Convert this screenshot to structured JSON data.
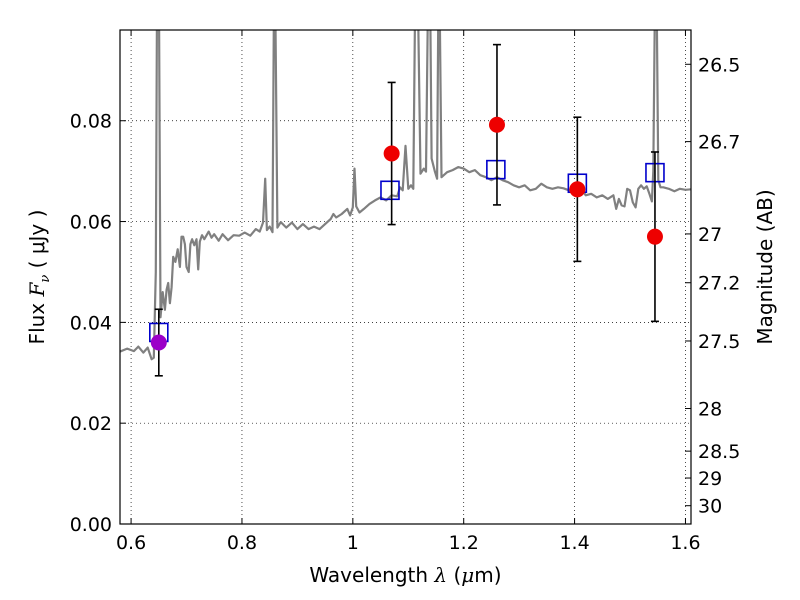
{
  "chart_data": {
    "type": "scatter",
    "xlabel": {
      "prefix": "Wavelength ",
      "symbol": "λ",
      "unit_open": " (",
      "unit_mu": "μ",
      "unit_rest": "m)"
    },
    "ylabel": {
      "prefix": "Flux ",
      "symbol": "F",
      "sub": "ν",
      "unit": " ( μJy )"
    },
    "y2label": "Magnitude (AB)",
    "xlim": [
      0.58,
      1.61
    ],
    "ylim": [
      0.0,
      0.098
    ],
    "grid": true,
    "x_ticks": [
      {
        "value": 0.6,
        "label": "0.6"
      },
      {
        "value": 0.8,
        "label": "0.8"
      },
      {
        "value": 1.0,
        "label": "1"
      },
      {
        "value": 1.2,
        "label": "1.2"
      },
      {
        "value": 1.4,
        "label": "1.4"
      },
      {
        "value": 1.6,
        "label": "1.6"
      }
    ],
    "y_ticks": [
      {
        "value": 0.0,
        "label": "0.00"
      },
      {
        "value": 0.02,
        "label": "0.02"
      },
      {
        "value": 0.04,
        "label": "0.04"
      },
      {
        "value": 0.06,
        "label": "0.06"
      },
      {
        "value": 0.08,
        "label": "0.08"
      }
    ],
    "mag_ticks": [
      {
        "mag": 26.5,
        "label": "26.5"
      },
      {
        "mag": 26.7,
        "label": "26.7"
      },
      {
        "mag": 27.0,
        "label": "27"
      },
      {
        "mag": 27.2,
        "label": "27.2"
      },
      {
        "mag": 27.5,
        "label": "27.5"
      },
      {
        "mag": 28.0,
        "label": "28"
      },
      {
        "mag": 28.5,
        "label": "28.5"
      },
      {
        "mag": 29.0,
        "label": "29"
      },
      {
        "mag": 30.0,
        "label": "30"
      }
    ],
    "model_spectrum": {
      "color": "#808080",
      "points": [
        [
          0.58,
          0.0342
        ],
        [
          0.593,
          0.0348
        ],
        [
          0.605,
          0.0343
        ],
        [
          0.613,
          0.0352
        ],
        [
          0.622,
          0.034
        ],
        [
          0.63,
          0.035
        ],
        [
          0.637,
          0.0327
        ],
        [
          0.641,
          0.033
        ],
        [
          0.6445,
          0.05
        ],
        [
          0.6465,
          0.099
        ],
        [
          0.6505,
          0.099
        ],
        [
          0.653,
          0.041
        ],
        [
          0.657,
          0.046
        ],
        [
          0.661,
          0.0425
        ],
        [
          0.664,
          0.0465
        ],
        [
          0.667,
          0.0478
        ],
        [
          0.67,
          0.0438
        ],
        [
          0.673,
          0.047
        ],
        [
          0.676,
          0.053
        ],
        [
          0.68,
          0.052
        ],
        [
          0.684,
          0.0545
        ],
        [
          0.688,
          0.051
        ],
        [
          0.691,
          0.057
        ],
        [
          0.694,
          0.057
        ],
        [
          0.697,
          0.0555
        ],
        [
          0.7,
          0.051
        ],
        [
          0.704,
          0.05
        ],
        [
          0.707,
          0.0555
        ],
        [
          0.71,
          0.0565
        ],
        [
          0.714,
          0.0553
        ],
        [
          0.718,
          0.0565
        ],
        [
          0.721,
          0.0505
        ],
        [
          0.724,
          0.056
        ],
        [
          0.728,
          0.0573
        ],
        [
          0.732,
          0.0565
        ],
        [
          0.74,
          0.058
        ],
        [
          0.745,
          0.0568
        ],
        [
          0.75,
          0.0575
        ],
        [
          0.758,
          0.0562
        ],
        [
          0.765,
          0.0575
        ],
        [
          0.775,
          0.0563
        ],
        [
          0.785,
          0.0573
        ],
        [
          0.795,
          0.0572
        ],
        [
          0.805,
          0.0578
        ],
        [
          0.815,
          0.0572
        ],
        [
          0.825,
          0.0585
        ],
        [
          0.832,
          0.058
        ],
        [
          0.838,
          0.0598
        ],
        [
          0.842,
          0.0685
        ],
        [
          0.845,
          0.0583
        ],
        [
          0.85,
          0.059
        ],
        [
          0.855,
          0.0579
        ],
        [
          0.8575,
          0.099
        ],
        [
          0.8605,
          0.099
        ],
        [
          0.864,
          0.0588
        ],
        [
          0.87,
          0.0599
        ],
        [
          0.88,
          0.0588
        ],
        [
          0.89,
          0.0598
        ],
        [
          0.9,
          0.0585
        ],
        [
          0.91,
          0.0595
        ],
        [
          0.92,
          0.0585
        ],
        [
          0.93,
          0.059
        ],
        [
          0.94,
          0.0585
        ],
        [
          0.95,
          0.0595
        ],
        [
          0.96,
          0.0605
        ],
        [
          0.965,
          0.0615
        ],
        [
          0.97,
          0.0608
        ],
        [
          0.98,
          0.0615
        ],
        [
          0.99,
          0.0625
        ],
        [
          0.995,
          0.0612
        ],
        [
          1.0,
          0.0628
        ],
        [
          1.003,
          0.0705
        ],
        [
          1.006,
          0.063
        ],
        [
          1.012,
          0.0618
        ],
        [
          1.02,
          0.0625
        ],
        [
          1.03,
          0.0635
        ],
        [
          1.04,
          0.0642
        ],
        [
          1.05,
          0.0648
        ],
        [
          1.06,
          0.0642
        ],
        [
          1.07,
          0.0652
        ],
        [
          1.08,
          0.065
        ],
        [
          1.085,
          0.0668
        ],
        [
          1.09,
          0.0662
        ],
        [
          1.095,
          0.075
        ],
        [
          1.1,
          0.0665
        ],
        [
          1.105,
          0.0672
        ],
        [
          1.109,
          0.0665
        ],
        [
          1.112,
          0.099
        ],
        [
          1.118,
          0.099
        ],
        [
          1.122,
          0.0695
        ],
        [
          1.128,
          0.0705
        ],
        [
          1.132,
          0.0699
        ],
        [
          1.135,
          0.099
        ],
        [
          1.14,
          0.099
        ],
        [
          1.142,
          0.0725
        ],
        [
          1.148,
          0.0699
        ],
        [
          1.152,
          0.0685
        ],
        [
          1.154,
          0.099
        ],
        [
          1.157,
          0.099
        ],
        [
          1.16,
          0.0688
        ],
        [
          1.17,
          0.0698
        ],
        [
          1.18,
          0.0702
        ],
        [
          1.19,
          0.0708
        ],
        [
          1.2,
          0.0705
        ],
        [
          1.21,
          0.0698
        ],
        [
          1.22,
          0.0702
        ],
        [
          1.23,
          0.0692
        ],
        [
          1.24,
          0.0688
        ],
        [
          1.25,
          0.0682
        ],
        [
          1.26,
          0.0688
        ],
        [
          1.27,
          0.0682
        ],
        [
          1.28,
          0.0678
        ],
        [
          1.29,
          0.0672
        ],
        [
          1.3,
          0.0668
        ],
        [
          1.31,
          0.0672
        ],
        [
          1.32,
          0.0662
        ],
        [
          1.33,
          0.0665
        ],
        [
          1.34,
          0.0675
        ],
        [
          1.35,
          0.0668
        ],
        [
          1.36,
          0.0665
        ],
        [
          1.37,
          0.0668
        ],
        [
          1.38,
          0.0666
        ],
        [
          1.39,
          0.0662
        ],
        [
          1.4,
          0.0672
        ],
        [
          1.41,
          0.0668
        ],
        [
          1.42,
          0.0652
        ],
        [
          1.43,
          0.0655
        ],
        [
          1.44,
          0.0648
        ],
        [
          1.45,
          0.0652
        ],
        [
          1.46,
          0.0645
        ],
        [
          1.47,
          0.0652
        ],
        [
          1.475,
          0.0625
        ],
        [
          1.48,
          0.0645
        ],
        [
          1.485,
          0.0632
        ],
        [
          1.49,
          0.063
        ],
        [
          1.495,
          0.0665
        ],
        [
          1.5,
          0.0662
        ],
        [
          1.505,
          0.0638
        ],
        [
          1.51,
          0.0628
        ],
        [
          1.515,
          0.0665
        ],
        [
          1.52,
          0.0672
        ],
        [
          1.525,
          0.0665
        ],
        [
          1.53,
          0.067
        ],
        [
          1.535,
          0.0655
        ],
        [
          1.5395,
          0.064
        ],
        [
          1.542,
          0.07
        ],
        [
          1.5445,
          0.099
        ],
        [
          1.5485,
          0.099
        ],
        [
          1.551,
          0.0682
        ],
        [
          1.555,
          0.0668
        ],
        [
          1.56,
          0.0668
        ],
        [
          1.57,
          0.0665
        ],
        [
          1.58,
          0.066
        ],
        [
          1.59,
          0.0665
        ],
        [
          1.6,
          0.0663
        ],
        [
          1.61,
          0.0664
        ]
      ]
    },
    "model_photometry": {
      "marker": "open-square",
      "color": "#0000cc",
      "points": [
        {
          "x": 0.65,
          "y": 0.038
        },
        {
          "x": 1.067,
          "y": 0.0662
        },
        {
          "x": 1.258,
          "y": 0.0703
        },
        {
          "x": 1.405,
          "y": 0.0676
        },
        {
          "x": 1.545,
          "y": 0.0697
        }
      ]
    },
    "observed": {
      "marker": "filled-circle",
      "points": [
        {
          "x": 0.65,
          "y": 0.036,
          "yerr": 0.0066,
          "color": "#9b00c8"
        },
        {
          "x": 1.07,
          "y": 0.0735,
          "yerr": 0.0141,
          "color": "#ee0000"
        },
        {
          "x": 1.26,
          "y": 0.0792,
          "yerr": 0.0159,
          "color": "#ee0000"
        },
        {
          "x": 1.405,
          "y": 0.0664,
          "yerr": 0.0143,
          "color": "#ee0000"
        },
        {
          "x": 1.545,
          "y": 0.057,
          "yerr": 0.0168,
          "color": "#ee0000"
        }
      ]
    }
  }
}
